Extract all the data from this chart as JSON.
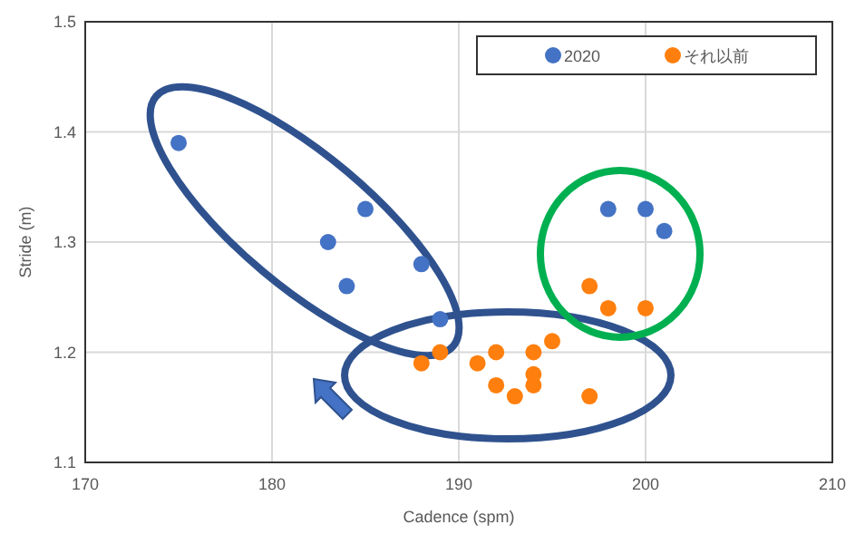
{
  "chart_data": {
    "type": "scatter",
    "xlabel": "Cadence (spm)",
    "ylabel": "Stride (m)",
    "xlim": [
      170,
      210
    ],
    "xticks": [
      170,
      180,
      190,
      200,
      210
    ],
    "ylim": [
      1.1,
      1.5
    ],
    "yticks": [
      1.1,
      1.2,
      1.3,
      1.4,
      1.5
    ],
    "grid": true,
    "legend": "top right",
    "marker": "circle",
    "series": [
      {
        "name": "2020",
        "color": "#4472c4",
        "x": [
          175,
          185,
          183,
          184,
          188,
          189,
          198,
          200,
          201
        ],
        "values": [
          1.39,
          1.33,
          1.3,
          1.26,
          1.28,
          1.23,
          1.33,
          1.33,
          1.31
        ]
      },
      {
        "name": "それ以前",
        "color": "#ff7f0e",
        "x": [
          197,
          198,
          200,
          188,
          189,
          191,
          192,
          192,
          193,
          194,
          194,
          194,
          195,
          197
        ],
        "values": [
          1.26,
          1.24,
          1.24,
          1.19,
          1.2,
          1.19,
          1.2,
          1.17,
          1.16,
          1.2,
          1.18,
          1.17,
          1.21,
          1.16
        ]
      }
    ]
  }
}
